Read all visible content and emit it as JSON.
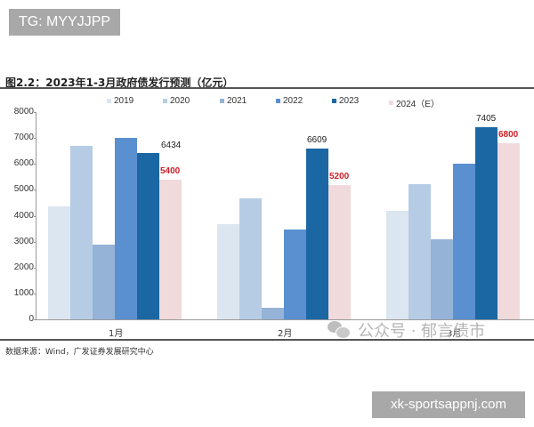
{
  "overlay": {
    "tg_badge": "TG: MYYJJPP",
    "site_badge": "xk-sportsappnj.com",
    "watermark": "公众号 · 郁言债市"
  },
  "figure": {
    "title": "图2.2：2023年1-3月政府债发行预测（亿元）",
    "source": "数据来源：Wind，广发证券发展研究中心"
  },
  "colors": {
    "2019": "#dce6f0",
    "2020": "#b6cce4",
    "2021": "#94b3d7",
    "2022": "#5a8fd0",
    "2023": "#1b67a3",
    "2024E": "#f0dadc",
    "estimate_label": "#d0202a"
  },
  "chart_data": {
    "type": "bar",
    "title": "2023年1-3月政府债发行预测（亿元）",
    "xlabel": "",
    "ylabel": "亿元",
    "ylim": [
      0,
      8000
    ],
    "yticks": [
      0,
      1000,
      2000,
      3000,
      4000,
      5000,
      6000,
      7000,
      8000
    ],
    "grid": false,
    "legend_position": "top",
    "categories": [
      "1月",
      "2月",
      "3月"
    ],
    "series": [
      {
        "name": "2019",
        "values": [
          4350,
          3680,
          4200
        ]
      },
      {
        "name": "2020",
        "values": [
          6700,
          4670,
          5220
        ]
      },
      {
        "name": "2021",
        "values": [
          2900,
          450,
          3100
        ]
      },
      {
        "name": "2022",
        "values": [
          7000,
          3480,
          6000
        ]
      },
      {
        "name": "2023",
        "values": [
          6434,
          6609,
          7405
        ],
        "labeled": true
      },
      {
        "name": "2024（E）",
        "values": [
          5400,
          5200,
          6800
        ],
        "labeled": true
      }
    ]
  }
}
